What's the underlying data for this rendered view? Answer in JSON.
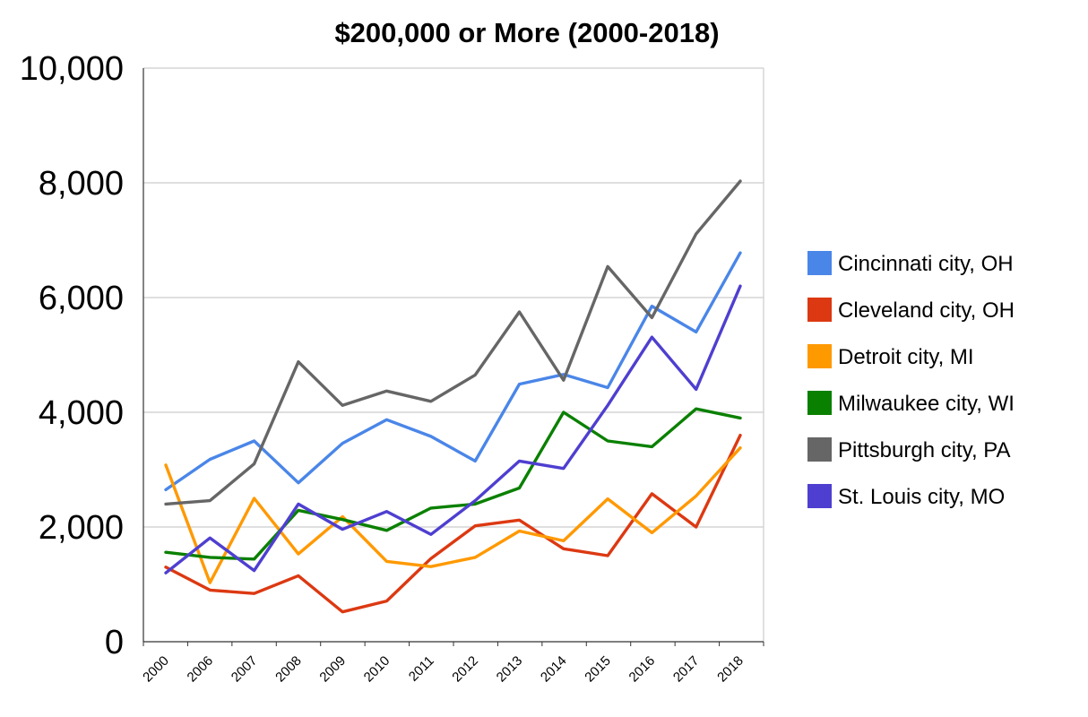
{
  "chart_data": {
    "type": "line",
    "title": "$200,000 or More (2000-2018)",
    "xlabel": "",
    "ylabel": "",
    "categories": [
      "2000",
      "2006",
      "2007",
      "2008",
      "2009",
      "2010",
      "2011",
      "2012",
      "2013",
      "2014",
      "2015",
      "2016",
      "2017",
      "2018"
    ],
    "ylim": [
      0,
      10000
    ],
    "yticks": [
      0,
      2000,
      4000,
      6000,
      8000,
      10000
    ],
    "ytick_labels": [
      "0",
      "2,000",
      "4,000",
      "6,000",
      "8,000",
      "10,000"
    ],
    "grid": true,
    "legend_position": "right",
    "series": [
      {
        "name": "Cincinnati city, OH",
        "color": "#4a86e8",
        "values": [
          2650,
          3180,
          3500,
          2770,
          3460,
          3870,
          3580,
          3150,
          4490,
          4660,
          4430,
          5850,
          5400,
          6780
        ]
      },
      {
        "name": "Cleveland city, OH",
        "color": "#dc3912",
        "values": [
          1300,
          900,
          840,
          1150,
          520,
          710,
          1450,
          2020,
          2120,
          1620,
          1500,
          2580,
          2000,
          3600
        ]
      },
      {
        "name": "Detroit city, MI",
        "color": "#ff9900",
        "values": [
          3080,
          1030,
          2500,
          1530,
          2180,
          1400,
          1310,
          1470,
          1930,
          1760,
          2490,
          1900,
          2540,
          3380
        ]
      },
      {
        "name": "Milwaukee city, WI",
        "color": "#0a8000",
        "values": [
          1560,
          1470,
          1440,
          2290,
          2130,
          1940,
          2330,
          2400,
          2680,
          4000,
          3500,
          3400,
          4060,
          3900
        ]
      },
      {
        "name": "Pittsburgh city, PA",
        "color": "#666666",
        "values": [
          2400,
          2460,
          3100,
          4880,
          4120,
          4370,
          4190,
          4650,
          5750,
          4560,
          6540,
          5650,
          7110,
          8030
        ]
      },
      {
        "name": "St. Louis city, MO",
        "color": "#4e3fd0",
        "values": [
          1200,
          1810,
          1240,
          2400,
          1960,
          2270,
          1870,
          2460,
          3150,
          3020,
          4120,
          5310,
          4400,
          6200
        ]
      }
    ]
  }
}
